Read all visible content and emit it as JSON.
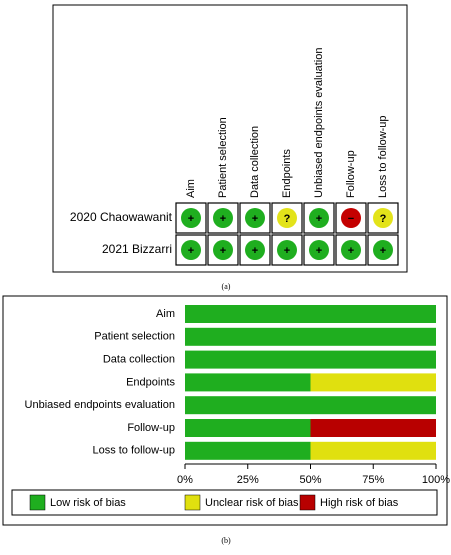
{
  "panel_a": {
    "columns": [
      "Aim",
      "Patient selection",
      "Data collection",
      "Endpoints",
      "Unbiased endpoints evaluation",
      "Follow-up",
      "Loss to follow-up"
    ],
    "rows": [
      {
        "study": "2020 Chaowawanit",
        "judgements": [
          "+",
          "+",
          "+",
          "?",
          "+",
          "−",
          "?"
        ]
      },
      {
        "study": "2021 Bizzarri",
        "judgements": [
          "+",
          "+",
          "+",
          "+",
          "+",
          "+",
          "+"
        ]
      }
    ],
    "judgement_colors": {
      "+": "#1fae1f",
      "?": "#e3e31a",
      "−": "#c40000"
    }
  },
  "caption_a": "(a)",
  "chart_data": {
    "type": "stacked_barh",
    "categories": [
      "Aim",
      "Patient selection",
      "Data collection",
      "Endpoints",
      "Unbiased endpoints evaluation",
      "Follow-up",
      "Loss to follow-up"
    ],
    "series": [
      {
        "name": "Low risk of bias",
        "color": "#1fae1f",
        "values": [
          100,
          100,
          100,
          50,
          100,
          50,
          50
        ]
      },
      {
        "name": "Unclear risk of bias",
        "color": "#e0e00f",
        "values": [
          0,
          0,
          0,
          50,
          0,
          0,
          50
        ]
      },
      {
        "name": "High risk of bias",
        "color": "#b80000",
        "values": [
          0,
          0,
          0,
          0,
          0,
          50,
          0
        ]
      }
    ],
    "xlim": [
      0,
      100
    ],
    "xticks": [
      {
        "value": 0,
        "label": "0%"
      },
      {
        "value": 25,
        "label": "25%"
      },
      {
        "value": 50,
        "label": "50%"
      },
      {
        "value": 75,
        "label": "75%"
      },
      {
        "value": 100,
        "label": "100%"
      }
    ],
    "legend": "bottom"
  },
  "caption_b": "(b)"
}
